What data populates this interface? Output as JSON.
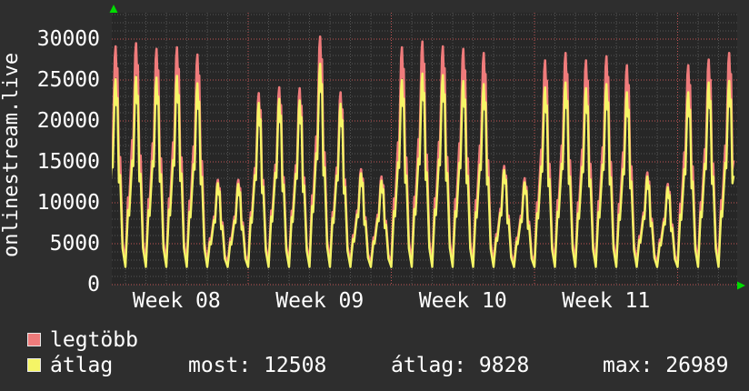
{
  "title": "onlinestream.live",
  "colors": {
    "background": "#2e2e2e",
    "canvas": "#272727",
    "text": "#ffffff",
    "series_max": "#ef7b7b",
    "series_avg": "#f5f566",
    "grid_minor": "#565656",
    "grid_major_red": "#c25555",
    "axis_arrow_green": "#00dc00",
    "legend_swatch_border": "#e8e8e8"
  },
  "legend": {
    "items": [
      {
        "label": "legtöbb",
        "color": "#ef7b7b"
      },
      {
        "label": "átlag",
        "color": "#f5f566"
      }
    ]
  },
  "stats_row": {
    "most": {
      "text": "most: 12508"
    },
    "atlag": {
      "text": "átlag: 9828"
    },
    "max": {
      "text": "max: 26989"
    }
  },
  "chart_data": {
    "type": "line",
    "title": "onlinestream.live",
    "x_axis": {
      "labels": [
        "Week 08",
        "Week 09",
        "Week 10",
        "Week 11"
      ],
      "minor_grid": "1 day",
      "major_grid": "1 week (red dashed)"
    },
    "y_axis": {
      "tick_labels": [
        "0",
        "5000",
        "10000",
        "15000",
        "20000",
        "25000",
        "30000"
      ],
      "tick_values": [
        0,
        5000,
        10000,
        15000,
        20000,
        25000,
        30000
      ],
      "minor_step": 1000,
      "visible_max": 33000,
      "grid": true
    },
    "series": [
      {
        "name": "legtöbb",
        "color": "#ef7b7b",
        "trough": 2600,
        "daily_peaks": [
          29100,
          29500,
          28800,
          29000,
          28100,
          12800,
          12800,
          23400,
          24100,
          24000,
          30300,
          23500,
          14100,
          13200,
          29000,
          29700,
          29100,
          28800,
          28300,
          14500,
          13000,
          27400,
          28300,
          27400,
          27900,
          26800,
          13700,
          12300,
          26800,
          27500,
          28300
        ]
      },
      {
        "name": "átlag",
        "color": "#f5f566",
        "trough": 2150,
        "daily_peaks": [
          25100,
          25400,
          25300,
          25500,
          24600,
          12400,
          12300,
          22200,
          22700,
          22500,
          26989,
          22100,
          13600,
          12700,
          25000,
          25800,
          25600,
          24900,
          24500,
          14000,
          12500,
          24100,
          24700,
          24000,
          24500,
          23500,
          13200,
          11900,
          23500,
          24700,
          24900
        ]
      }
    ],
    "stats": {
      "most": 12508,
      "atlag": 9828,
      "max": 26989
    }
  }
}
